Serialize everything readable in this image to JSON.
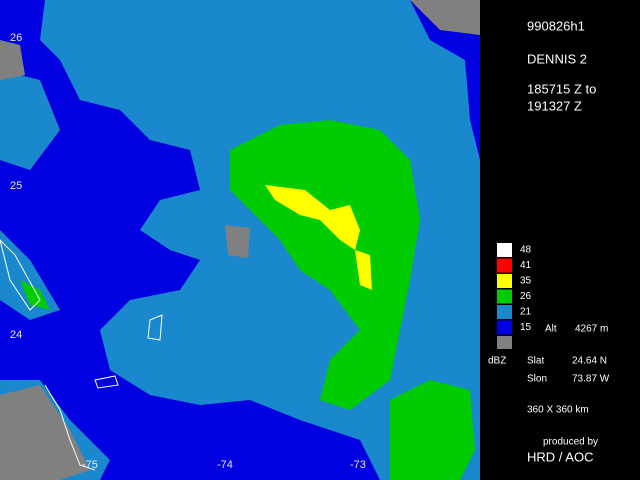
{
  "radar": {
    "flight_id": "990826h1",
    "storm": "DENNIS 2",
    "time_start": "185715 Z to",
    "time_end": "191327 Z",
    "legend": [
      {
        "label": 48,
        "color": "#ffffff"
      },
      {
        "label": 41,
        "color": "#ff0000"
      },
      {
        "label": 35,
        "color": "#ffff00"
      },
      {
        "label": 26,
        "color": "#00cc00"
      },
      {
        "label": 21,
        "color": "#1a88cc"
      },
      {
        "label": 15,
        "color": "#0000e0"
      }
    ],
    "legend_unit": "dBZ",
    "altitude_label": "Alt",
    "altitude": "4267 m",
    "slat_label": "Slat",
    "slat": "24.64 N",
    "slon_label": "Slon",
    "slon": "73.87 W",
    "extent": "360 X 360 km",
    "credit_line1": "produced by",
    "credit_line2": "HRD / AOC",
    "lat_labels": [
      "26",
      "25",
      "24"
    ],
    "lon_labels": [
      "-75",
      "-74",
      "-73"
    ]
  }
}
